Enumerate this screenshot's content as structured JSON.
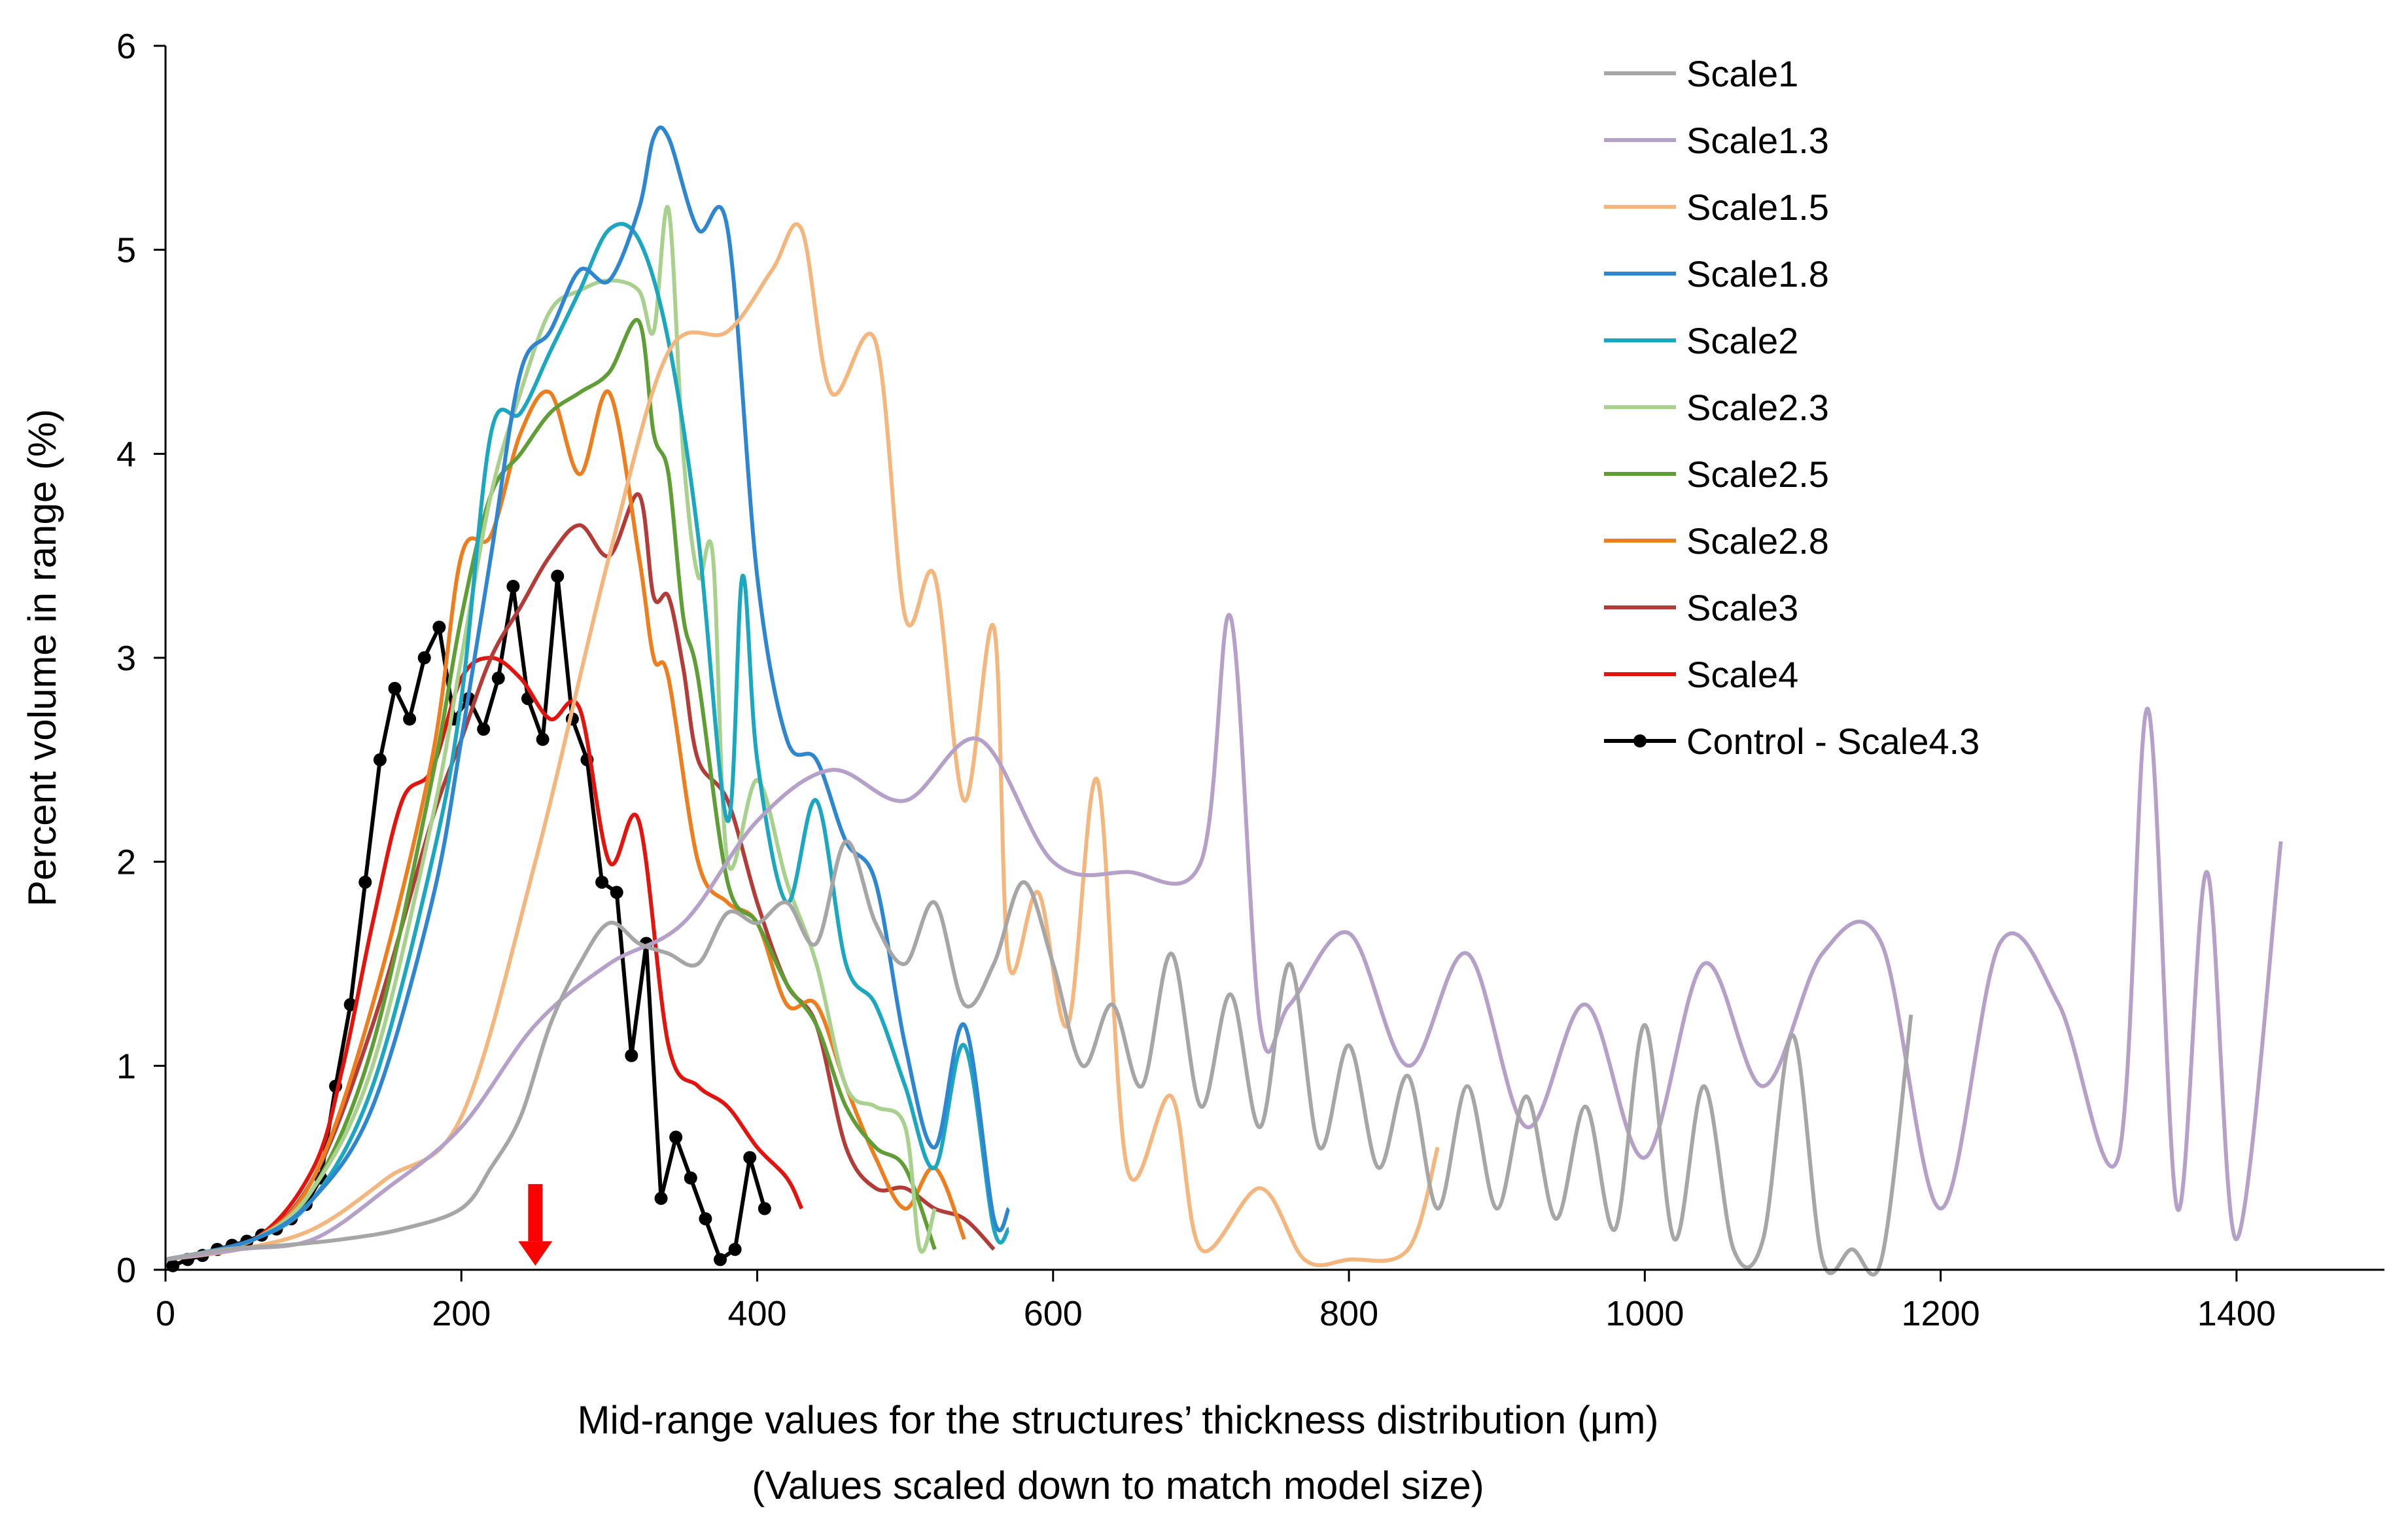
{
  "chart_data": {
    "type": "line",
    "title": "",
    "xlabel": "Mid-range values for the structures’ thickness distribution (μm)",
    "xlabel2": "(Values scaled down to match model size)",
    "ylabel": "Percent volume in range (%)",
    "xlim": [
      0,
      1500
    ],
    "ylim": [
      0,
      6
    ],
    "xticks": [
      0,
      200,
      400,
      600,
      800,
      1000,
      1200,
      1400
    ],
    "yticks": [
      0,
      1,
      2,
      3,
      4,
      5,
      6
    ],
    "grid": false,
    "legend": "top-right",
    "annotation": {
      "type": "arrow",
      "color": "#ff0000",
      "x": 250
    },
    "series": [
      {
        "name": "Scale1",
        "color": "#a6a6a6",
        "marker": false,
        "x": [
          0,
          40,
          80,
          120,
          160,
          200,
          220,
          240,
          260,
          280,
          300,
          320,
          340,
          360,
          380,
          400,
          420,
          440,
          460,
          480,
          500,
          520,
          540,
          560,
          580,
          600,
          620,
          640,
          660,
          680,
          700,
          720,
          740,
          760,
          780,
          800,
          820,
          840,
          860,
          880,
          900,
          920,
          940,
          960,
          980,
          1000,
          1020,
          1040,
          1060,
          1080,
          1100,
          1120,
          1140,
          1160,
          1180
        ],
        "y": [
          0.05,
          0.1,
          0.12,
          0.15,
          0.2,
          0.3,
          0.5,
          0.75,
          1.2,
          1.5,
          1.7,
          1.6,
          1.55,
          1.5,
          1.75,
          1.7,
          1.8,
          1.6,
          2.1,
          1.7,
          1.5,
          1.8,
          1.3,
          1.5,
          1.9,
          1.5,
          1.0,
          1.3,
          0.9,
          1.55,
          0.8,
          1.35,
          0.7,
          1.5,
          0.6,
          1.1,
          0.5,
          0.95,
          0.3,
          0.9,
          0.3,
          0.85,
          0.25,
          0.8,
          0.2,
          1.2,
          0.15,
          0.9,
          0.1,
          0.15,
          1.15,
          0.05,
          0.1,
          0.05,
          1.25
        ]
      },
      {
        "name": "Scale1.3",
        "color": "#b4a0c8",
        "marker": false,
        "x": [
          0,
          50,
          100,
          150,
          200,
          250,
          300,
          350,
          400,
          450,
          500,
          550,
          600,
          650,
          700,
          720,
          740,
          760,
          800,
          840,
          880,
          920,
          960,
          1000,
          1040,
          1080,
          1120,
          1160,
          1200,
          1240,
          1280,
          1320,
          1340,
          1360,
          1380,
          1400,
          1430
        ],
        "y": [
          0.05,
          0.1,
          0.15,
          0.4,
          0.7,
          1.2,
          1.5,
          1.7,
          2.2,
          2.45,
          2.3,
          2.6,
          2.0,
          1.95,
          2.0,
          3.2,
          1.2,
          1.3,
          1.65,
          1.0,
          1.55,
          0.7,
          1.3,
          0.55,
          1.5,
          0.9,
          1.55,
          1.6,
          0.3,
          1.6,
          1.3,
          0.55,
          2.75,
          0.3,
          1.95,
          0.15,
          2.1
        ]
      },
      {
        "name": "Scale1.5",
        "color": "#f4b67c",
        "marker": false,
        "x": [
          0,
          50,
          100,
          150,
          200,
          250,
          300,
          340,
          380,
          410,
          430,
          450,
          480,
          500,
          520,
          540,
          560,
          570,
          590,
          610,
          630,
          650,
          680,
          700,
          740,
          770,
          800,
          840,
          860
        ],
        "y": [
          0.05,
          0.1,
          0.2,
          0.45,
          0.75,
          2.0,
          3.5,
          4.5,
          4.6,
          4.9,
          5.1,
          4.3,
          4.55,
          3.2,
          3.4,
          2.3,
          3.15,
          1.5,
          1.85,
          1.2,
          2.4,
          0.5,
          0.85,
          0.1,
          0.4,
          0.05,
          0.05,
          0.1,
          0.6
        ]
      },
      {
        "name": "Scale1.8",
        "color": "#2e86d1",
        "marker": false,
        "x": [
          0,
          60,
          100,
          140,
          180,
          200,
          220,
          240,
          260,
          280,
          300,
          320,
          330,
          340,
          360,
          380,
          400,
          420,
          440,
          460,
          480,
          500,
          520,
          540,
          560,
          570
        ],
        "y": [
          0.05,
          0.15,
          0.35,
          0.8,
          1.8,
          2.6,
          3.5,
          4.4,
          4.6,
          4.9,
          4.85,
          5.2,
          5.55,
          5.55,
          5.1,
          5.1,
          3.4,
          2.6,
          2.5,
          2.1,
          1.9,
          1.1,
          0.6,
          1.2,
          0.25,
          0.3
        ]
      },
      {
        "name": "Scale2",
        "color": "#1aa7bf",
        "marker": false,
        "x": [
          0,
          60,
          100,
          140,
          180,
          200,
          220,
          240,
          260,
          280,
          300,
          320,
          340,
          360,
          380,
          390,
          400,
          420,
          440,
          460,
          480,
          500,
          520,
          540,
          560,
          570
        ],
        "y": [
          0.05,
          0.15,
          0.35,
          0.9,
          2.0,
          2.8,
          4.1,
          4.2,
          4.5,
          4.8,
          5.1,
          5.05,
          4.55,
          3.6,
          2.2,
          3.4,
          2.5,
          1.8,
          2.3,
          1.5,
          1.3,
          0.9,
          0.5,
          1.1,
          0.2,
          0.2
        ]
      },
      {
        "name": "Scale2.3",
        "color": "#a9d18e",
        "marker": false,
        "x": [
          0,
          60,
          100,
          140,
          180,
          200,
          220,
          240,
          260,
          280,
          300,
          320,
          330,
          340,
          350,
          360,
          370,
          380,
          400,
          420,
          440,
          460,
          480,
          500,
          510,
          520
        ],
        "y": [
          0.05,
          0.15,
          0.4,
          1.0,
          2.2,
          3.0,
          3.8,
          4.3,
          4.7,
          4.8,
          4.85,
          4.8,
          4.6,
          5.2,
          4.0,
          3.4,
          3.5,
          2.0,
          2.4,
          1.9,
          1.5,
          0.9,
          0.8,
          0.7,
          0.1,
          0.3
        ]
      },
      {
        "name": "Scale2.5",
        "color": "#5e9e34",
        "marker": false,
        "x": [
          0,
          60,
          100,
          140,
          180,
          200,
          220,
          240,
          260,
          280,
          300,
          320,
          330,
          340,
          350,
          360,
          380,
          400,
          420,
          440,
          460,
          480,
          500,
          520
        ],
        "y": [
          0.05,
          0.15,
          0.4,
          1.1,
          2.4,
          3.2,
          3.8,
          4.0,
          4.2,
          4.3,
          4.4,
          4.65,
          4.1,
          3.9,
          3.2,
          2.9,
          1.9,
          1.7,
          1.4,
          1.2,
          0.8,
          0.6,
          0.5,
          0.1
        ]
      },
      {
        "name": "Scale2.8",
        "color": "#ee7d1e",
        "marker": false,
        "x": [
          0,
          60,
          100,
          140,
          180,
          200,
          220,
          240,
          260,
          280,
          300,
          320,
          330,
          340,
          360,
          380,
          400,
          420,
          440,
          460,
          480,
          500,
          520,
          540
        ],
        "y": [
          0.05,
          0.15,
          0.45,
          1.3,
          2.5,
          3.5,
          3.6,
          4.1,
          4.3,
          3.9,
          4.3,
          3.5,
          3.0,
          2.9,
          2.0,
          1.8,
          1.7,
          1.3,
          1.3,
          0.9,
          0.55,
          0.3,
          0.5,
          0.15
        ]
      },
      {
        "name": "Scale3",
        "color": "#b33b38",
        "marker": false,
        "x": [
          0,
          60,
          100,
          140,
          180,
          200,
          220,
          240,
          260,
          280,
          300,
          320,
          330,
          340,
          350,
          360,
          380,
          400,
          420,
          440,
          460,
          480,
          500,
          520,
          540,
          560
        ],
        "y": [
          0.05,
          0.15,
          0.45,
          1.2,
          2.2,
          2.6,
          3.0,
          3.25,
          3.5,
          3.65,
          3.5,
          3.8,
          3.3,
          3.3,
          2.95,
          2.5,
          2.3,
          1.8,
          1.4,
          1.2,
          0.6,
          0.4,
          0.4,
          0.3,
          0.25,
          0.1
        ]
      },
      {
        "name": "Scale4",
        "color": "#e3140e",
        "marker": false,
        "x": [
          0,
          60,
          100,
          120,
          140,
          160,
          180,
          200,
          220,
          240,
          260,
          280,
          300,
          320,
          340,
          360,
          380,
          400,
          420,
          430
        ],
        "y": [
          0.05,
          0.15,
          0.5,
          1.0,
          1.7,
          2.3,
          2.45,
          2.9,
          3.0,
          2.9,
          2.7,
          2.75,
          2.0,
          2.2,
          1.1,
          0.9,
          0.8,
          0.6,
          0.45,
          0.3
        ]
      },
      {
        "name": "Control - Scale4.3",
        "color": "#000000",
        "marker": true,
        "x": [
          5,
          15,
          25,
          35,
          45,
          55,
          65,
          75,
          85,
          95,
          105,
          115,
          125,
          135,
          145,
          155,
          165,
          175,
          185,
          195,
          205,
          215,
          225,
          235,
          245,
          255,
          265,
          275,
          285,
          295,
          305,
          315,
          325,
          335,
          345,
          355,
          365,
          375,
          385,
          395,
          405
        ],
        "y": [
          0.02,
          0.05,
          0.07,
          0.1,
          0.12,
          0.14,
          0.17,
          0.2,
          0.25,
          0.32,
          0.45,
          0.9,
          1.3,
          1.9,
          2.5,
          2.85,
          2.7,
          3.0,
          3.15,
          2.7,
          2.8,
          2.65,
          2.9,
          3.35,
          2.8,
          2.6,
          3.4,
          2.7,
          2.5,
          1.9,
          1.85,
          1.05,
          1.6,
          0.35,
          0.65,
          0.45,
          0.25,
          0.05,
          0.1,
          0.55,
          0.3
        ]
      }
    ]
  }
}
